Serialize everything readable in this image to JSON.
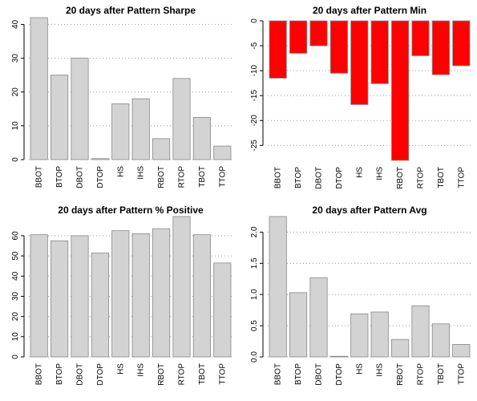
{
  "chart_data": [
    {
      "type": "bar",
      "title": "20 days after Pattern Sharpe",
      "categories": [
        "BBOT",
        "BTOP",
        "DBOT",
        "DTOP",
        "HS",
        "IHS",
        "RBOT",
        "RTOP",
        "TBOT",
        "TTOP"
      ],
      "values": [
        42,
        25,
        30,
        0.3,
        16.5,
        18,
        6.2,
        24,
        12.5,
        4
      ],
      "ylim": [
        0,
        42
      ],
      "yticks": [
        0,
        10,
        20,
        30,
        40
      ],
      "tick_labels": [
        "0",
        "10",
        "20",
        "30",
        "40"
      ],
      "grid": true,
      "color": "#d3d3d3"
    },
    {
      "type": "bar",
      "title": "20 days after Pattern Min",
      "categories": [
        "BBOT",
        "BTOP",
        "DBOT",
        "DTOP",
        "HS",
        "IHS",
        "RBOT",
        "RTOP",
        "TBOT",
        "TTOP"
      ],
      "values": [
        -11.5,
        -6.5,
        -5,
        -10.5,
        -16.8,
        -12.6,
        -28,
        -7,
        -10.8,
        -9
      ],
      "ylim": [
        -28,
        0
      ],
      "yticks": [
        0,
        -5,
        -10,
        -15,
        -20,
        -25
      ],
      "tick_labels": [
        "0",
        "-5",
        "-10",
        "-15",
        "-20",
        "-25"
      ],
      "grid": true,
      "color": "#ff0000"
    },
    {
      "type": "bar",
      "title": "20 days after Pattern % Positive",
      "categories": [
        "BBOT",
        "BTOP",
        "DBOT",
        "DTOP",
        "HS",
        "IHS",
        "RBOT",
        "RTOP",
        "TBOT",
        "TTOP"
      ],
      "values": [
        60.5,
        57.5,
        60,
        51.5,
        62.5,
        61,
        63.5,
        69.5,
        60.5,
        46.5
      ],
      "ylim": [
        0,
        69.5
      ],
      "yticks": [
        0,
        10,
        20,
        30,
        40,
        50,
        60
      ],
      "tick_labels": [
        "0",
        "10",
        "20",
        "30",
        "40",
        "50",
        "60"
      ],
      "grid": true,
      "color": "#d3d3d3"
    },
    {
      "type": "bar",
      "title": "20 days after Pattern Avg",
      "categories": [
        "BBOT",
        "BTOP",
        "DBOT",
        "DTOP",
        "HS",
        "IHS",
        "RBOT",
        "RTOP",
        "TBOT",
        "TTOP"
      ],
      "values": [
        2.25,
        1.03,
        1.27,
        0.01,
        0.69,
        0.72,
        0.28,
        0.82,
        0.53,
        0.2
      ],
      "ylim": [
        0,
        2.25
      ],
      "yticks": [
        0,
        0.5,
        1.0,
        1.5,
        2.0
      ],
      "tick_labels": [
        "0.0",
        "0.5",
        "1.0",
        "1.5",
        "2.0"
      ],
      "grid": true,
      "color": "#d3d3d3"
    }
  ]
}
